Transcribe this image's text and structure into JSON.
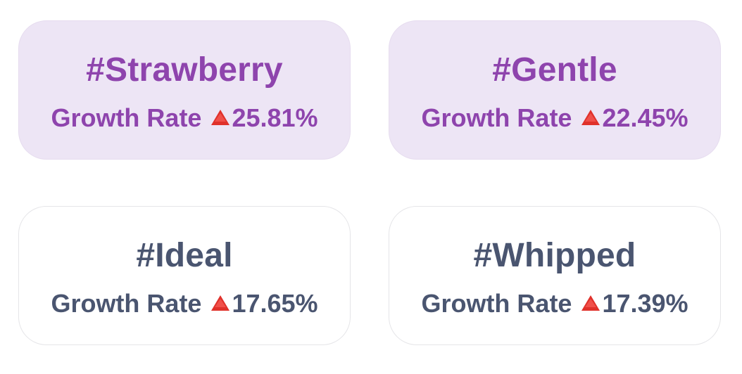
{
  "colors": {
    "highlight_text": "#8e44ad",
    "highlight_bg": "#ede5f5",
    "plain_text": "#4a5570",
    "plain_bg": "#ffffff",
    "up_arrow": "#e0312b"
  },
  "cards": [
    {
      "tag": "#Strawberry",
      "rate_label": "Growth Rate",
      "trend_icon": "red-up-triangle-icon",
      "rate_value": "25.81%",
      "highlighted": true
    },
    {
      "tag": "#Gentle",
      "rate_label": "Growth Rate",
      "trend_icon": "red-up-triangle-icon",
      "rate_value": "22.45%",
      "highlighted": true
    },
    {
      "tag": "#Ideal",
      "rate_label": "Growth Rate",
      "trend_icon": "red-up-triangle-icon",
      "rate_value": "17.65%",
      "highlighted": false
    },
    {
      "tag": "#Whipped",
      "rate_label": "Growth Rate",
      "trend_icon": "red-up-triangle-icon",
      "rate_value": "17.39%",
      "highlighted": false
    }
  ]
}
